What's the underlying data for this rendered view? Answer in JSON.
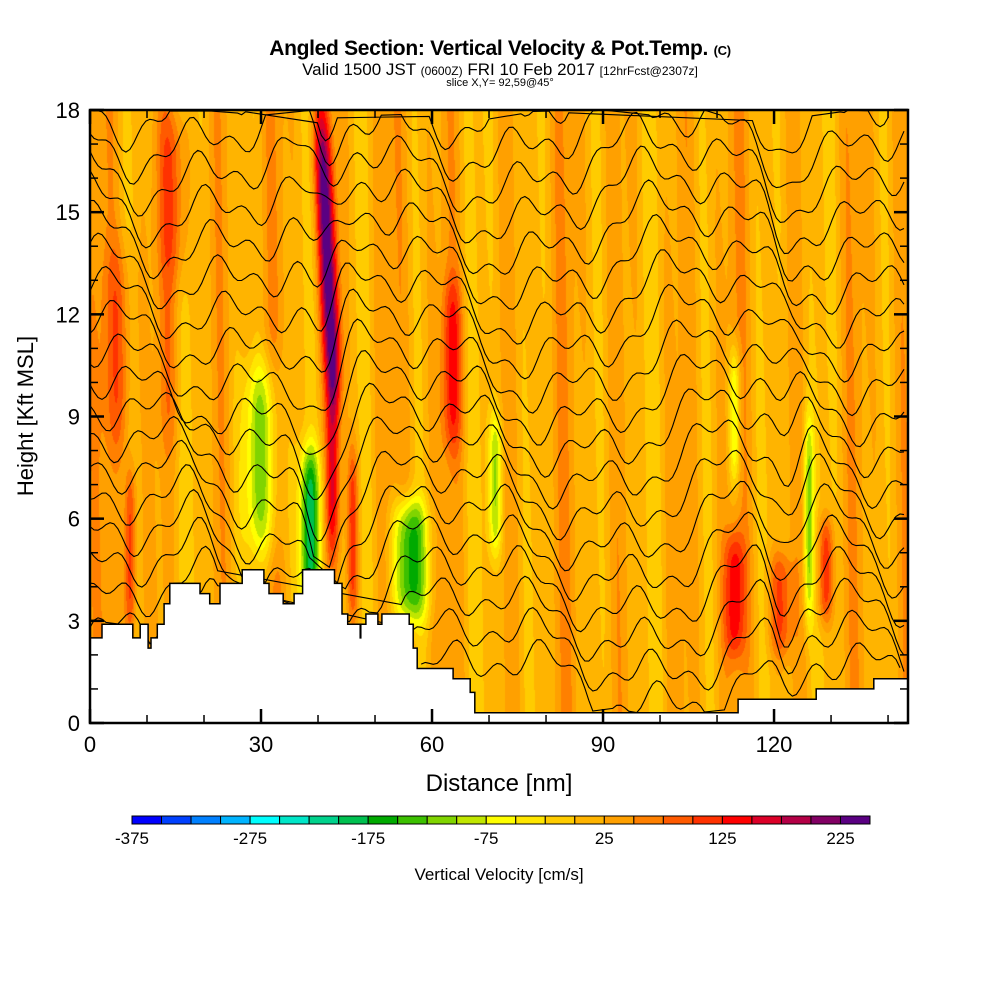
{
  "header": {
    "title_main": "Angled Section: Vertical Velocity & Pot.Temp.",
    "title_copyright": "(C)",
    "valid_prefix": "Valid 1500 JST",
    "valid_utc": "(0600Z)",
    "valid_date": "FRI 10 Feb 2017",
    "forecast_info": "[12hrFcst@2307z]",
    "slice_info": "slice X,Y= 92,59@45°"
  },
  "chart_data": {
    "type": "heatmap",
    "title": "Angled Section: Vertical Velocity & Pot.Temp.",
    "xlabel": "Distance [nm]",
    "ylabel": "Height [Kft MSL]",
    "xlim": [
      0,
      143.5
    ],
    "ylim": [
      0,
      18
    ],
    "x_ticks": [
      0,
      30,
      60,
      90,
      120
    ],
    "x_tick_labels": [
      "0",
      "30",
      "60",
      "90",
      "120"
    ],
    "x_minor_step": 10,
    "y_ticks": [
      0,
      3,
      6,
      9,
      12,
      15,
      18
    ],
    "y_tick_labels": [
      "0",
      "3",
      "6",
      "9",
      "12",
      "15",
      "18"
    ],
    "y_minor_step": 1,
    "colorbar": {
      "label": "Vertical Velocity [cm/s]",
      "min": -375,
      "step": 25,
      "tick_labels": [
        "-375",
        "-275",
        "-175",
        "-75",
        "25",
        "125",
        "225"
      ],
      "tick_values": [
        -375,
        -275,
        -175,
        -75,
        25,
        125,
        225
      ],
      "colors": [
        "#0000ff",
        "#0040ff",
        "#0080ff",
        "#00b4ff",
        "#00ffff",
        "#00e6c8",
        "#00d28c",
        "#00c050",
        "#00aa00",
        "#3cc000",
        "#80d400",
        "#c0e600",
        "#ffff00",
        "#ffe600",
        "#ffcc00",
        "#ffb400",
        "#ffa000",
        "#ff8000",
        "#ff5a00",
        "#ff3200",
        "#ff0000",
        "#dc0028",
        "#b40046",
        "#820064",
        "#5a0082"
      ]
    },
    "terrain_kft": {
      "distance_nm": [
        0,
        2.1,
        7.5,
        8.8,
        10.2,
        10.7,
        11.8,
        13.0,
        14.0,
        19.3,
        21.0,
        22.8,
        26.7,
        30.5,
        31.4,
        33.9,
        35.8,
        36.1,
        37.3,
        42.9,
        44.2,
        45.2,
        47.4,
        47.5,
        48.4,
        50.5,
        51.2,
        56.0,
        56.7,
        57.4,
        58.4,
        63.7,
        66.7,
        67.5,
        71.7,
        113.7,
        127.4,
        137.5,
        143.5
      ],
      "height": [
        2.5,
        2.9,
        2.5,
        2.9,
        2.2,
        2.5,
        2.9,
        3.5,
        4.1,
        3.8,
        3.5,
        4.1,
        4.5,
        4.1,
        3.8,
        3.5,
        3.8,
        3.8,
        4.5,
        4.1,
        3.2,
        2.9,
        2.5,
        2.9,
        3.2,
        2.9,
        3.2,
        2.9,
        2.2,
        1.6,
        1.6,
        1.3,
        0.9,
        0.3,
        0.3,
        0.7,
        1.0,
        1.3,
        1.3
      ]
    },
    "vertical_velocity_features": [
      {
        "x_nm": 7,
        "h_lo": 2.5,
        "h_hi": 7.5,
        "value": 135,
        "width_nm": 1.0
      },
      {
        "x_nm": 5,
        "h_lo": 8,
        "h_hi": 14,
        "value": 85,
        "width_nm": 2.5
      },
      {
        "x_nm": 14.5,
        "h_lo": 13,
        "h_hi": 18,
        "value": 105,
        "width_nm": 2.5
      },
      {
        "x_nm": 14,
        "h_lo": 8,
        "h_hi": 13,
        "value": 60,
        "width_nm": 2.0
      },
      {
        "x_nm": 41.5,
        "h_lo": 10,
        "h_hi": 18,
        "value": 240,
        "width_nm": 1.6
      },
      {
        "x_nm": 42.5,
        "h_lo": 5,
        "h_hi": 11,
        "value": 140,
        "width_nm": 1.2
      },
      {
        "x_nm": 46,
        "h_lo": 3,
        "h_hi": 8,
        "value": 120,
        "width_nm": 1.0
      },
      {
        "x_nm": 63.5,
        "h_lo": 8,
        "h_hi": 13,
        "value": 115,
        "width_nm": 1.8
      },
      {
        "x_nm": 38.5,
        "h_lo": 3.5,
        "h_hi": 8,
        "value": -170,
        "width_nm": 1.8
      },
      {
        "x_nm": 30,
        "h_lo": 5,
        "h_hi": 10.5,
        "value": -115,
        "width_nm": 3.0
      },
      {
        "x_nm": 56,
        "h_lo": 3,
        "h_hi": 6.5,
        "value": -165,
        "width_nm": 3.0
      },
      {
        "x_nm": 113,
        "h_lo": 2,
        "h_hi": 5.5,
        "value": 130,
        "width_nm": 1.8
      },
      {
        "x_nm": 121,
        "h_lo": 2,
        "h_hi": 5,
        "value": 110,
        "width_nm": 2.0
      },
      {
        "x_nm": 129,
        "h_lo": 3,
        "h_hi": 6,
        "value": 125,
        "width_nm": 1.4
      },
      {
        "x_nm": 126,
        "h_lo": 3,
        "h_hi": 9,
        "value": -95,
        "width_nm": 0.9
      },
      {
        "x_nm": 71,
        "h_lo": 5,
        "h_hi": 9,
        "value": -90,
        "width_nm": 1.2
      },
      {
        "x_nm": 113,
        "h_lo": 7,
        "h_hi": 11,
        "value": -85,
        "width_nm": 1.0
      }
    ],
    "pot_temp_contour_count": 19
  }
}
